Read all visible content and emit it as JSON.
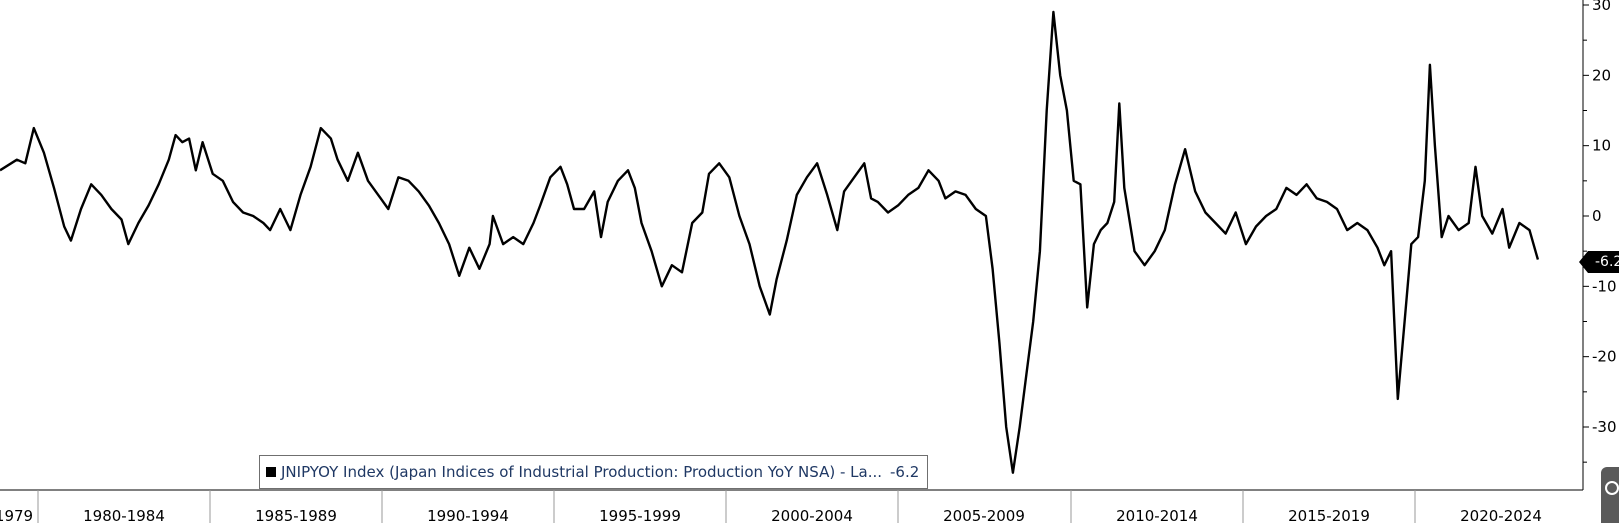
{
  "chart_data": {
    "type": "line",
    "series": [
      {
        "name": "JNIPYOY Index (Japan Indices of Industrial Production: Production YoY NSA) - La...",
        "last_value": "-6.2",
        "points": [
          [
            1979.0,
            6.5
          ],
          [
            1979.5,
            8.0
          ],
          [
            1979.75,
            7.5
          ],
          [
            1980.0,
            12.5
          ],
          [
            1980.3,
            9.0
          ],
          [
            1980.6,
            4.0
          ],
          [
            1980.9,
            -1.5
          ],
          [
            1981.1,
            -3.5
          ],
          [
            1981.4,
            1.0
          ],
          [
            1981.7,
            4.5
          ],
          [
            1982.0,
            3.0
          ],
          [
            1982.3,
            1.0
          ],
          [
            1982.6,
            -0.5
          ],
          [
            1982.8,
            -4.0
          ],
          [
            1983.1,
            -1.0
          ],
          [
            1983.4,
            1.5
          ],
          [
            1983.7,
            4.5
          ],
          [
            1984.0,
            8.0
          ],
          [
            1984.2,
            11.5
          ],
          [
            1984.4,
            10.5
          ],
          [
            1984.6,
            11.0
          ],
          [
            1984.8,
            6.5
          ],
          [
            1985.0,
            10.5
          ],
          [
            1985.3,
            6.0
          ],
          [
            1985.6,
            5.0
          ],
          [
            1985.9,
            2.0
          ],
          [
            1986.2,
            0.5
          ],
          [
            1986.5,
            0.0
          ],
          [
            1986.8,
            -1.0
          ],
          [
            1987.0,
            -2.0
          ],
          [
            1987.3,
            1.0
          ],
          [
            1987.6,
            -2.0
          ],
          [
            1987.9,
            3.0
          ],
          [
            1988.2,
            7.0
          ],
          [
            1988.5,
            12.5
          ],
          [
            1988.8,
            11.0
          ],
          [
            1989.0,
            8.0
          ],
          [
            1989.3,
            5.0
          ],
          [
            1989.6,
            9.0
          ],
          [
            1989.9,
            5.0
          ],
          [
            1990.2,
            3.0
          ],
          [
            1990.5,
            1.0
          ],
          [
            1990.8,
            5.5
          ],
          [
            1991.1,
            5.0
          ],
          [
            1991.4,
            3.5
          ],
          [
            1991.7,
            1.5
          ],
          [
            1992.0,
            -1.0
          ],
          [
            1992.3,
            -4.0
          ],
          [
            1992.6,
            -8.5
          ],
          [
            1992.9,
            -4.5
          ],
          [
            1993.2,
            -7.5
          ],
          [
            1993.5,
            -4.0
          ],
          [
            1993.6,
            0.0
          ],
          [
            1993.9,
            -4.0
          ],
          [
            1994.2,
            -3.0
          ],
          [
            1994.5,
            -4.0
          ],
          [
            1994.8,
            -1.0
          ],
          [
            1995.0,
            1.5
          ],
          [
            1995.3,
            5.5
          ],
          [
            1995.6,
            7.0
          ],
          [
            1995.8,
            4.5
          ],
          [
            1996.0,
            1.0
          ],
          [
            1996.3,
            1.0
          ],
          [
            1996.6,
            3.5
          ],
          [
            1996.8,
            -3.0
          ],
          [
            1997.0,
            2.0
          ],
          [
            1997.3,
            5.0
          ],
          [
            1997.6,
            6.5
          ],
          [
            1997.8,
            4.0
          ],
          [
            1998.0,
            -1.0
          ],
          [
            1998.3,
            -5.0
          ],
          [
            1998.6,
            -10.0
          ],
          [
            1998.9,
            -7.0
          ],
          [
            1999.2,
            -8.0
          ],
          [
            1999.5,
            -1.0
          ],
          [
            1999.8,
            0.5
          ],
          [
            2000.0,
            6.0
          ],
          [
            2000.3,
            7.5
          ],
          [
            2000.6,
            5.5
          ],
          [
            2000.9,
            0.0
          ],
          [
            2001.2,
            -4.0
          ],
          [
            2001.5,
            -10.0
          ],
          [
            2001.8,
            -14.0
          ],
          [
            2002.0,
            -9.0
          ],
          [
            2002.3,
            -3.5
          ],
          [
            2002.6,
            3.0
          ],
          [
            2002.9,
            5.5
          ],
          [
            2003.2,
            7.5
          ],
          [
            2003.5,
            3.0
          ],
          [
            2003.8,
            -2.0
          ],
          [
            2004.0,
            3.5
          ],
          [
            2004.3,
            5.5
          ],
          [
            2004.6,
            7.5
          ],
          [
            2004.8,
            2.5
          ],
          [
            2005.0,
            2.0
          ],
          [
            2005.3,
            0.5
          ],
          [
            2005.6,
            1.5
          ],
          [
            2005.9,
            3.0
          ],
          [
            2006.2,
            4.0
          ],
          [
            2006.5,
            6.5
          ],
          [
            2006.8,
            5.0
          ],
          [
            2007.0,
            2.5
          ],
          [
            2007.3,
            3.5
          ],
          [
            2007.6,
            3.0
          ],
          [
            2007.9,
            1.0
          ],
          [
            2008.2,
            0.0
          ],
          [
            2008.4,
            -7.5
          ],
          [
            2008.6,
            -18.0
          ],
          [
            2008.8,
            -30.0
          ],
          [
            2009.0,
            -36.5
          ],
          [
            2009.2,
            -30.0
          ],
          [
            2009.4,
            -22.5
          ],
          [
            2009.6,
            -15.0
          ],
          [
            2009.8,
            -5.0
          ],
          [
            2010.0,
            15.0
          ],
          [
            2010.2,
            29.0
          ],
          [
            2010.4,
            20.0
          ],
          [
            2010.6,
            15.0
          ],
          [
            2010.8,
            5.0
          ],
          [
            2011.0,
            4.5
          ],
          [
            2011.2,
            -13.0
          ],
          [
            2011.4,
            -4.0
          ],
          [
            2011.6,
            -2.0
          ],
          [
            2011.8,
            -1.0
          ],
          [
            2012.0,
            2.0
          ],
          [
            2012.15,
            16.0
          ],
          [
            2012.3,
            4.0
          ],
          [
            2012.6,
            -5.0
          ],
          [
            2012.9,
            -7.0
          ],
          [
            2013.2,
            -5.0
          ],
          [
            2013.5,
            -2.0
          ],
          [
            2013.8,
            4.5
          ],
          [
            2014.1,
            9.5
          ],
          [
            2014.4,
            3.5
          ],
          [
            2014.7,
            0.5
          ],
          [
            2015.0,
            -1.0
          ],
          [
            2015.3,
            -2.5
          ],
          [
            2015.6,
            0.5
          ],
          [
            2015.9,
            -4.0
          ],
          [
            2016.2,
            -1.5
          ],
          [
            2016.5,
            0.0
          ],
          [
            2016.8,
            1.0
          ],
          [
            2017.1,
            4.0
          ],
          [
            2017.4,
            3.0
          ],
          [
            2017.7,
            4.5
          ],
          [
            2018.0,
            2.5
          ],
          [
            2018.3,
            2.0
          ],
          [
            2018.6,
            1.0
          ],
          [
            2018.9,
            -2.0
          ],
          [
            2019.2,
            -1.0
          ],
          [
            2019.5,
            -2.0
          ],
          [
            2019.8,
            -4.5
          ],
          [
            2020.0,
            -7.0
          ],
          [
            2020.2,
            -5.0
          ],
          [
            2020.4,
            -26.0
          ],
          [
            2020.6,
            -15.0
          ],
          [
            2020.8,
            -4.0
          ],
          [
            2021.0,
            -3.0
          ],
          [
            2021.2,
            5.0
          ],
          [
            2021.35,
            21.5
          ],
          [
            2021.5,
            10.0
          ],
          [
            2021.7,
            -3.0
          ],
          [
            2021.9,
            0.0
          ],
          [
            2022.2,
            -2.0
          ],
          [
            2022.5,
            -1.0
          ],
          [
            2022.7,
            7.0
          ],
          [
            2022.9,
            0.0
          ],
          [
            2023.2,
            -2.5
          ],
          [
            2023.5,
            1.0
          ],
          [
            2023.7,
            -4.5
          ],
          [
            2024.0,
            -1.0
          ],
          [
            2024.3,
            -2.0
          ],
          [
            2024.55,
            -6.2
          ]
        ]
      }
    ],
    "x_ticks": [
      "1979",
      "1980-1984",
      "1985-1989",
      "1990-1994",
      "1995-1999",
      "2000-2004",
      "2005-2009",
      "2010-2014",
      "2015-2019",
      "2020-2024"
    ],
    "y_ticks": [
      30,
      20,
      10,
      0,
      -10,
      -20,
      -30
    ],
    "xlim": [
      1979.0,
      2025.5
    ],
    "ylim": [
      -37.5,
      30.5
    ],
    "grid": false,
    "legend_placement": "bottom-center",
    "line_color": "#000000",
    "xlabel": "",
    "ylabel": "",
    "title": ""
  }
}
